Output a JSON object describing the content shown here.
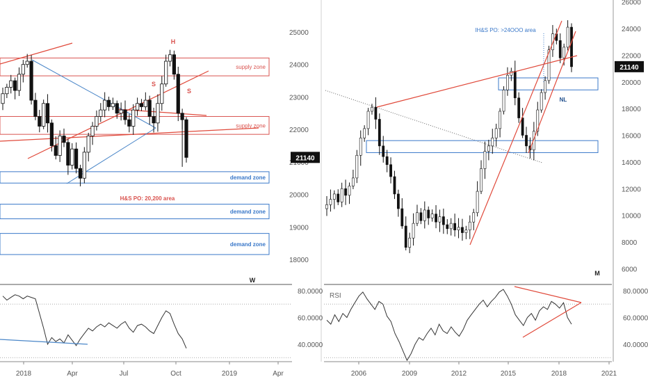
{
  "colors": {
    "supply": "#d9534f",
    "demand": "#3a78c9",
    "trendline": "#e0493a",
    "blue_line": "#4a86c8",
    "rsi_line": "#333333",
    "candle": "#111111",
    "price_badge_bg": "#111111",
    "price_badge_text": "#ffffff",
    "axis_text": "#555555",
    "grid_dotted": "#aaaaaa"
  },
  "chart_data": [
    {
      "type": "candlestick",
      "panel": "left-weekly",
      "timeframe_label": "W",
      "y_axis_ticks": [
        "25000",
        "24000",
        "23000",
        "22000",
        "21000",
        "20000",
        "19000",
        "18000"
      ],
      "ylim": [
        17400,
        26000
      ],
      "current_price": "21140",
      "x_ticks": [
        "2018",
        "Apr",
        "Jul",
        "Oct",
        "2019",
        "Apr"
      ],
      "zones": [
        {
          "kind": "supply",
          "label": "supply zone",
          "range": [
            23650,
            24200
          ]
        },
        {
          "kind": "supply",
          "label": "supply zone",
          "range": [
            21850,
            22400
          ]
        },
        {
          "kind": "demand",
          "label": "demand zone",
          "range": [
            20350,
            20700
          ]
        },
        {
          "kind": "demand",
          "label": "demand zone",
          "range": [
            19250,
            19700
          ]
        },
        {
          "kind": "demand",
          "label": "demand zone",
          "range": [
            18150,
            18800
          ]
        }
      ],
      "annotations": [
        {
          "text": "H",
          "color": "#d9534f"
        },
        {
          "text": "S",
          "color": "#d9534f"
        },
        {
          "text": "S",
          "color": "#d9534f"
        },
        {
          "text": "H&S PO: 20,200 area",
          "color": "#d9534f"
        }
      ],
      "candles_close": [
        23100,
        23300,
        23500,
        23200,
        23700,
        24000,
        24100,
        22900,
        22400,
        22100,
        22800,
        22200,
        21500,
        21200,
        21800,
        21600,
        20900,
        21400,
        20800,
        20500,
        21300,
        21800,
        22100,
        22400,
        22600,
        22900,
        22700,
        22800,
        22500,
        22600,
        22300,
        22100,
        22600,
        22800,
        22700,
        22900,
        22400,
        22200,
        22800,
        23400,
        24100,
        24300,
        23700,
        22500,
        22300,
        21140
      ]
    },
    {
      "type": "candlestick",
      "panel": "right-monthly",
      "timeframe_label": "M",
      "y_axis_ticks": [
        "26000",
        "24000",
        "22000",
        "20000",
        "18000",
        "16000",
        "14000",
        "12000",
        "10000",
        "8000",
        "6000"
      ],
      "ylim": [
        6000,
        26000
      ],
      "current_price": "21140",
      "x_ticks": [
        "2006",
        "2009",
        "2012",
        "2015",
        "2018",
        "2021"
      ],
      "zones": [
        {
          "kind": "demand",
          "label": "",
          "range": [
            19400,
            20300
          ]
        },
        {
          "kind": "demand",
          "label": "",
          "range": [
            14700,
            15600
          ]
        }
      ],
      "annotations": [
        {
          "text": "IH&S PO: >24OOO area",
          "color": "#3a78c9"
        },
        {
          "text": "NL",
          "color": "#1f4e8c"
        }
      ]
    },
    {
      "type": "line",
      "panel": "left-rsi",
      "y_axis_ticks": [
        "80.0000",
        "60.0000",
        "40.0000"
      ],
      "ylim": [
        25,
        85
      ],
      "values": [
        76,
        73,
        75,
        77,
        76,
        74,
        76,
        75,
        74,
        63,
        52,
        40,
        45,
        42,
        44,
        41,
        47,
        43,
        39,
        44,
        48,
        52,
        50,
        53,
        55,
        53,
        56,
        54,
        52,
        55,
        57,
        52,
        49,
        54,
        55,
        53,
        50,
        48,
        54,
        60,
        65,
        63,
        55,
        48,
        44,
        37
      ]
    },
    {
      "type": "line",
      "panel": "right-rsi",
      "label": "RSI",
      "y_axis_ticks": [
        "80.0000",
        "60.0000",
        "40.0000"
      ],
      "ylim": [
        25,
        85
      ],
      "values": [
        58,
        55,
        62,
        57,
        63,
        60,
        66,
        71,
        76,
        79,
        74,
        70,
        66,
        72,
        70,
        61,
        57,
        48,
        42,
        35,
        28,
        33,
        40,
        45,
        43,
        48,
        52,
        47,
        55,
        50,
        48,
        53,
        49,
        46,
        51,
        58,
        62,
        66,
        70,
        73,
        68,
        72,
        75,
        79,
        81,
        76,
        70,
        62,
        58,
        54,
        60,
        63,
        58,
        65,
        68,
        66,
        72,
        70,
        67,
        71,
        60,
        55
      ]
    }
  ]
}
